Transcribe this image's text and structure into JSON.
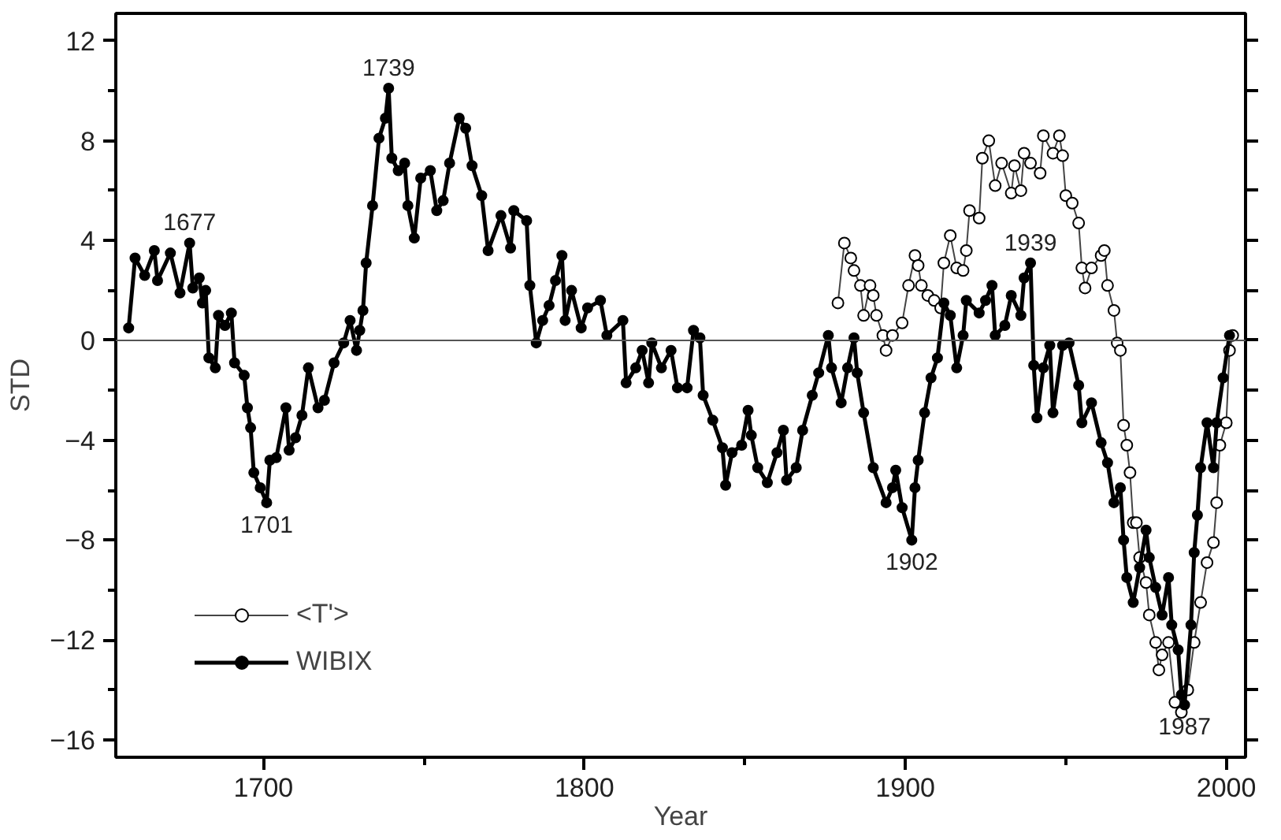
{
  "chart_data": {
    "type": "line",
    "xlabel": "Year",
    "ylabel": "STD",
    "xlim": [
      1654,
      2006
    ],
    "ylim": [
      -16.7,
      13.1
    ],
    "xticks": [
      1700,
      {
        "value": 1750,
        "label": null
      },
      1800,
      {
        "value": 1850,
        "label": null
      },
      1900,
      {
        "value": 1950,
        "label": null
      },
      2000
    ],
    "yticks": [
      -16,
      {
        "value": -14,
        "label": null
      },
      -12,
      {
        "value": -10,
        "label": null
      },
      -8,
      {
        "value": -6,
        "label": null
      },
      -4,
      {
        "value": -2,
        "label": null
      },
      0,
      {
        "value": 2,
        "label": null
      },
      4,
      {
        "value": 6,
        "label": null
      },
      8,
      {
        "value": 10,
        "label": null
      },
      12
    ],
    "grid": false,
    "legend": "bottom left",
    "marker": "circle",
    "line_style": "solid",
    "ref_lines": [
      {
        "axis": "y",
        "value": 0,
        "color": "#555555"
      }
    ],
    "annotations": [
      {
        "text": "1677",
        "x": 1677,
        "y": 3.9
      },
      {
        "text": "1701",
        "x": 1701,
        "y": -6.5
      },
      {
        "text": "1739",
        "x": 1739,
        "y": 10.1
      },
      {
        "text": "1902",
        "x": 1902,
        "y": -8.0
      },
      {
        "text": "1939",
        "x": 1939,
        "y": 3.1
      },
      {
        "text": "1987",
        "x": 1987,
        "y": -14.6
      }
    ],
    "series": [
      {
        "name": "<T'>",
        "color": "#444444",
        "x": [
          1879,
          1881,
          1883,
          1884,
          1886,
          1887,
          1889,
          1890,
          1891,
          1893,
          1894,
          1896,
          1899,
          1901,
          1903,
          1904,
          1905,
          1907,
          1909,
          1911,
          1912,
          1914,
          1916,
          1918,
          1919,
          1920,
          1923,
          1924,
          1926,
          1928,
          1930,
          1933,
          1934,
          1936,
          1937,
          1939,
          1942,
          1943,
          1946,
          1948,
          1949,
          1950,
          1952,
          1954,
          1955,
          1956,
          1958,
          1961,
          1962,
          1963,
          1965,
          1966,
          1967,
          1968,
          1969,
          1970,
          1971,
          1972,
          1973,
          1975,
          1976,
          1978,
          1979,
          1980,
          1982,
          1984,
          1986,
          1988,
          1990,
          1992,
          1994,
          1996,
          1997,
          1998,
          2000,
          2001,
          2002
        ],
        "values": [
          1.5,
          3.9,
          3.3,
          2.8,
          2.2,
          1.0,
          2.2,
          1.8,
          1.0,
          0.2,
          -0.4,
          0.2,
          0.7,
          2.2,
          3.4,
          3.0,
          2.2,
          1.8,
          1.6,
          1.3,
          3.1,
          4.2,
          2.9,
          2.8,
          3.6,
          5.2,
          4.9,
          7.3,
          8.0,
          6.2,
          7.1,
          5.9,
          7.0,
          6.0,
          7.5,
          7.1,
          6.7,
          8.2,
          7.5,
          8.2,
          7.4,
          5.8,
          5.5,
          4.7,
          2.9,
          2.1,
          2.9,
          3.4,
          3.6,
          2.2,
          1.2,
          -0.1,
          -0.4,
          -3.4,
          -4.2,
          -5.3,
          -7.3,
          -7.3,
          -8.7,
          -9.7,
          -11.0,
          -12.1,
          -13.2,
          -12.6,
          -12.1,
          -14.5,
          -14.9,
          -14.0,
          -12.1,
          -10.5,
          -8.9,
          -8.1,
          -6.5,
          -4.2,
          -3.3,
          -0.4,
          0.2
        ]
      },
      {
        "name": "WIBIX",
        "color": "#000000",
        "x": [
          1658,
          1660,
          1663,
          1666,
          1667,
          1671,
          1674,
          1677,
          1678,
          1680,
          1681,
          1682,
          1683,
          1685,
          1686,
          1688,
          1690,
          1691,
          1694,
          1695,
          1696,
          1697,
          1699,
          1701,
          1702,
          1704,
          1707,
          1708,
          1710,
          1712,
          1714,
          1717,
          1719,
          1722,
          1725,
          1727,
          1729,
          1730,
          1731,
          1732,
          1734,
          1736,
          1738,
          1739,
          1740,
          1742,
          1744,
          1745,
          1747,
          1749,
          1752,
          1754,
          1756,
          1758,
          1761,
          1763,
          1765,
          1768,
          1770,
          1774,
          1777,
          1778,
          1782,
          1783,
          1785,
          1787,
          1789,
          1791,
          1793,
          1794,
          1796,
          1799,
          1801,
          1805,
          1807,
          1812,
          1813,
          1816,
          1818,
          1820,
          1821,
          1824,
          1827,
          1829,
          1832,
          1834,
          1836,
          1837,
          1840,
          1843,
          1844,
          1846,
          1849,
          1851,
          1852,
          1854,
          1857,
          1860,
          1862,
          1863,
          1866,
          1868,
          1871,
          1873,
          1876,
          1877,
          1880,
          1882,
          1884,
          1885,
          1887,
          1890,
          1894,
          1896,
          1897,
          1899,
          1902,
          1903,
          1904,
          1906,
          1908,
          1910,
          1912,
          1914,
          1916,
          1918,
          1919,
          1923,
          1925,
          1927,
          1928,
          1931,
          1933,
          1936,
          1937,
          1939,
          1940,
          1941,
          1943,
          1945,
          1946,
          1949,
          1951,
          1954,
          1955,
          1958,
          1961,
          1963,
          1965,
          1967,
          1968,
          1969,
          1971,
          1973,
          1975,
          1976,
          1978,
          1980,
          1982,
          1983,
          1985,
          1986,
          1987,
          1989,
          1990,
          1991,
          1992,
          1994,
          1996,
          1997,
          1999,
          2001
        ],
        "values": [
          0.5,
          3.3,
          2.6,
          3.6,
          2.4,
          3.5,
          1.9,
          3.9,
          2.1,
          2.5,
          1.5,
          2.0,
          -0.7,
          -1.1,
          1.0,
          0.6,
          1.1,
          -0.9,
          -1.4,
          -2.7,
          -3.5,
          -5.3,
          -5.9,
          -6.5,
          -4.8,
          -4.7,
          -2.7,
          -4.4,
          -3.9,
          -3.0,
          -1.1,
          -2.7,
          -2.4,
          -0.9,
          -0.1,
          0.8,
          -0.4,
          0.4,
          1.2,
          3.1,
          5.4,
          8.1,
          8.9,
          10.1,
          7.3,
          6.8,
          7.1,
          5.4,
          4.1,
          6.5,
          6.8,
          5.2,
          5.6,
          7.1,
          8.9,
          8.5,
          7.0,
          5.8,
          3.6,
          5.0,
          3.7,
          5.2,
          4.8,
          2.2,
          -0.1,
          0.8,
          1.4,
          2.4,
          3.4,
          0.8,
          2.0,
          0.5,
          1.3,
          1.6,
          0.2,
          0.8,
          -1.7,
          -1.1,
          -0.4,
          -1.7,
          -0.1,
          -1.1,
          -0.4,
          -1.9,
          -1.9,
          0.4,
          0.1,
          -2.2,
          -3.2,
          -4.3,
          -5.8,
          -4.5,
          -4.2,
          -2.8,
          -3.8,
          -5.1,
          -5.7,
          -4.5,
          -3.6,
          -5.6,
          -5.1,
          -3.6,
          -2.2,
          -1.3,
          0.2,
          -1.1,
          -2.5,
          -1.1,
          0.1,
          -1.3,
          -2.9,
          -5.1,
          -6.5,
          -5.9,
          -5.2,
          -6.7,
          -8.0,
          -5.9,
          -4.8,
          -2.9,
          -1.5,
          -0.7,
          1.5,
          1.0,
          -1.1,
          0.2,
          1.6,
          1.1,
          1.6,
          2.2,
          0.2,
          0.6,
          1.8,
          1.0,
          2.5,
          3.1,
          -1.0,
          -3.1,
          -1.1,
          -0.2,
          -2.9,
          -0.2,
          -0.1,
          -1.8,
          -3.3,
          -2.5,
          -4.1,
          -4.9,
          -6.5,
          -5.9,
          -8.0,
          -9.5,
          -10.5,
          -9.1,
          -7.6,
          -8.7,
          -9.9,
          -11.0,
          -9.5,
          -11.4,
          -12.4,
          -14.2,
          -14.6,
          -11.4,
          -8.5,
          -7.0,
          -5.1,
          -3.3,
          -5.1,
          -3.3,
          -1.5,
          0.2
        ]
      }
    ]
  }
}
